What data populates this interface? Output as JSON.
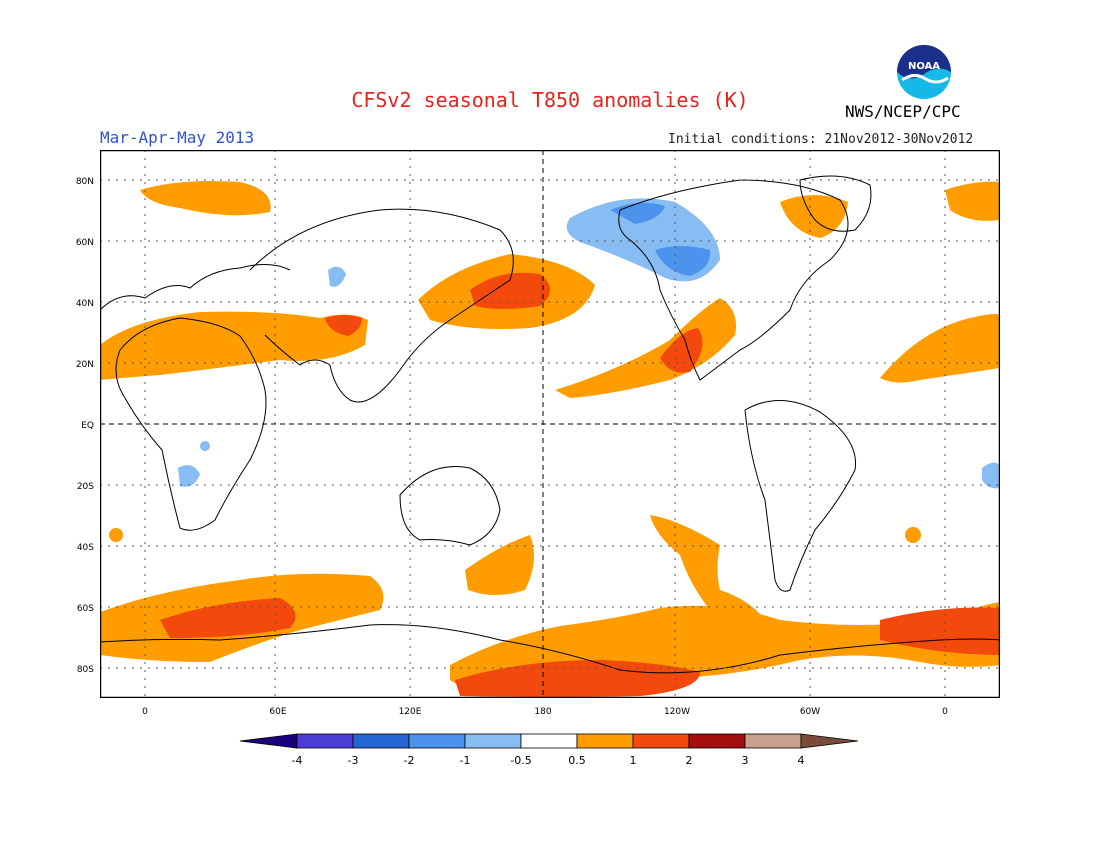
{
  "header": {
    "title": "CFSv2 seasonal T850 anomalies (K)",
    "agency": "NWS/NCEP/CPC",
    "logo_text": "NOAA",
    "season": "Mar-Apr-May 2013",
    "initial_conditions": "Initial conditions: 21Nov2012-30Nov2012"
  },
  "map": {
    "lat_labels": [
      "80N",
      "60N",
      "40N",
      "20N",
      "EQ",
      "20S",
      "40S",
      "60S",
      "80S"
    ],
    "lon_labels": [
      "0",
      "60E",
      "120E",
      "180",
      "120W",
      "60W",
      "0"
    ]
  },
  "legend": {
    "levels": [
      "-4",
      "-3",
      "-2",
      "-1",
      "-0.5",
      "0.5",
      "1",
      "2",
      "3",
      "4"
    ],
    "colors": [
      "#1a0080",
      "#4d3dd6",
      "#2266d4",
      "#4b93ec",
      "#87bdf2",
      "#ffffff",
      "#ff9d00",
      "#f4490d",
      "#a50e0e",
      "#c8a08c",
      "#7a4a3a"
    ]
  }
}
